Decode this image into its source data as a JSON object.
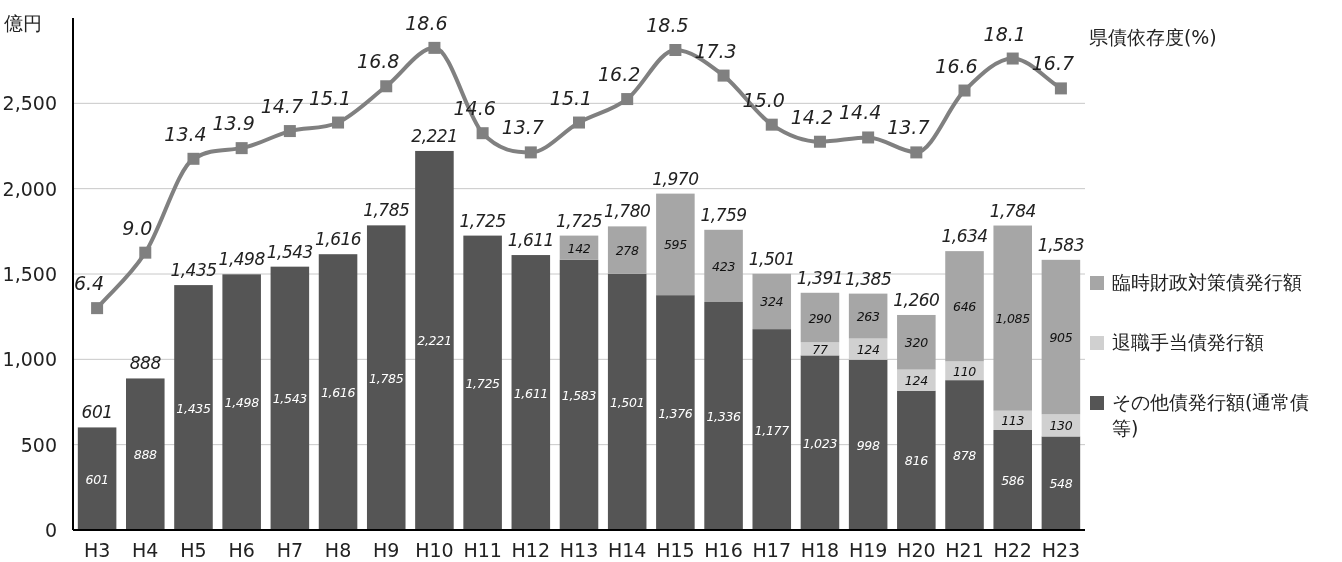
{
  "chart_data": {
    "type": "bar",
    "stacked": true,
    "ylabel": "億円",
    "categories": [
      "H3",
      "H4",
      "H5",
      "H6",
      "H7",
      "H8",
      "H9",
      "H10",
      "H11",
      "H12",
      "H13",
      "H14",
      "H15",
      "H16",
      "H17",
      "H18",
      "H19",
      "H20",
      "H21",
      "H22",
      "H23"
    ],
    "series": [
      {
        "name": "その他債発行額(通常債等)",
        "color": "#555555",
        "values": [
          601,
          888,
          1435,
          1498,
          1543,
          1616,
          1785,
          2221,
          1725,
          1611,
          1583,
          1501,
          1376,
          1336,
          1177,
          1023,
          998,
          816,
          878,
          586,
          548
        ],
        "value_labels": [
          "601",
          "888",
          "1,435",
          "1,498",
          "1,543",
          "1,616",
          "1,785",
          "2,221",
          "1,725",
          "1,611",
          "1,583",
          "1,501",
          "1,376",
          "1,336",
          "1,177",
          "1,023",
          "998",
          "816",
          "878",
          "586",
          "548"
        ]
      },
      {
        "name": "退職手当債発行額",
        "color": "#d0d0d0",
        "values": [
          null,
          null,
          null,
          null,
          null,
          null,
          null,
          null,
          null,
          null,
          null,
          null,
          null,
          null,
          null,
          77,
          124,
          124,
          110,
          113,
          130
        ],
        "value_labels": [
          null,
          null,
          null,
          null,
          null,
          null,
          null,
          null,
          null,
          null,
          null,
          null,
          null,
          null,
          null,
          "77",
          "124",
          "124",
          "110",
          "113",
          "130"
        ]
      },
      {
        "name": "臨時財政対策債発行額",
        "color": "#a6a6a6",
        "values": [
          null,
          null,
          null,
          null,
          null,
          null,
          null,
          null,
          null,
          null,
          142,
          278,
          595,
          423,
          324,
          290,
          263,
          320,
          646,
          1085,
          905
        ],
        "value_labels": [
          null,
          null,
          null,
          null,
          null,
          null,
          null,
          null,
          null,
          null,
          "142",
          "278",
          "595",
          "423",
          "324",
          "290",
          "263",
          "320",
          "646",
          "1,085",
          "905"
        ]
      },
      {
        "name": "県債依存度(%)",
        "type": "line",
        "axis": "y2",
        "color": "#808080",
        "marker": "square",
        "values": [
          6.4,
          9.0,
          13.4,
          13.9,
          14.7,
          15.1,
          16.8,
          18.6,
          14.6,
          13.7,
          15.1,
          16.2,
          18.5,
          17.3,
          15.0,
          14.2,
          14.4,
          13.7,
          16.6,
          18.1,
          16.7
        ],
        "value_labels": [
          "6.4",
          "9.0",
          "13.4",
          "13.9",
          "14.7",
          "15.1",
          "16.8",
          "18.6",
          "14.6",
          "13.7",
          "15.1",
          "16.2",
          "18.5",
          "17.3",
          "15.0",
          "14.2",
          "14.4",
          "13.7",
          "16.6",
          "18.1",
          "16.7"
        ]
      }
    ],
    "totals": [
      "601",
      "888",
      "1,435",
      "1,498",
      "1,543",
      "1,616",
      "1,785",
      "2,221",
      "1,725",
      "1,611",
      "1,725",
      "1,780",
      "1,970",
      "1,759",
      "1,501",
      "1,391",
      "1,385",
      "1,260",
      "1,634",
      "1,784",
      "1,583"
    ],
    "ylim": [
      0,
      3000
    ],
    "yticks": [
      0,
      500,
      {
        "value": 1000,
        "label": "1,000"
      },
      {
        "value": 1500,
        "label": "1,500"
      },
      {
        "value": 2000,
        "label": "2,000"
      },
      {
        "value": 2500,
        "label": "2,500"
      }
    ],
    "y2lim": [
      -4,
      20
    ],
    "grid": "y",
    "legend": "right"
  }
}
